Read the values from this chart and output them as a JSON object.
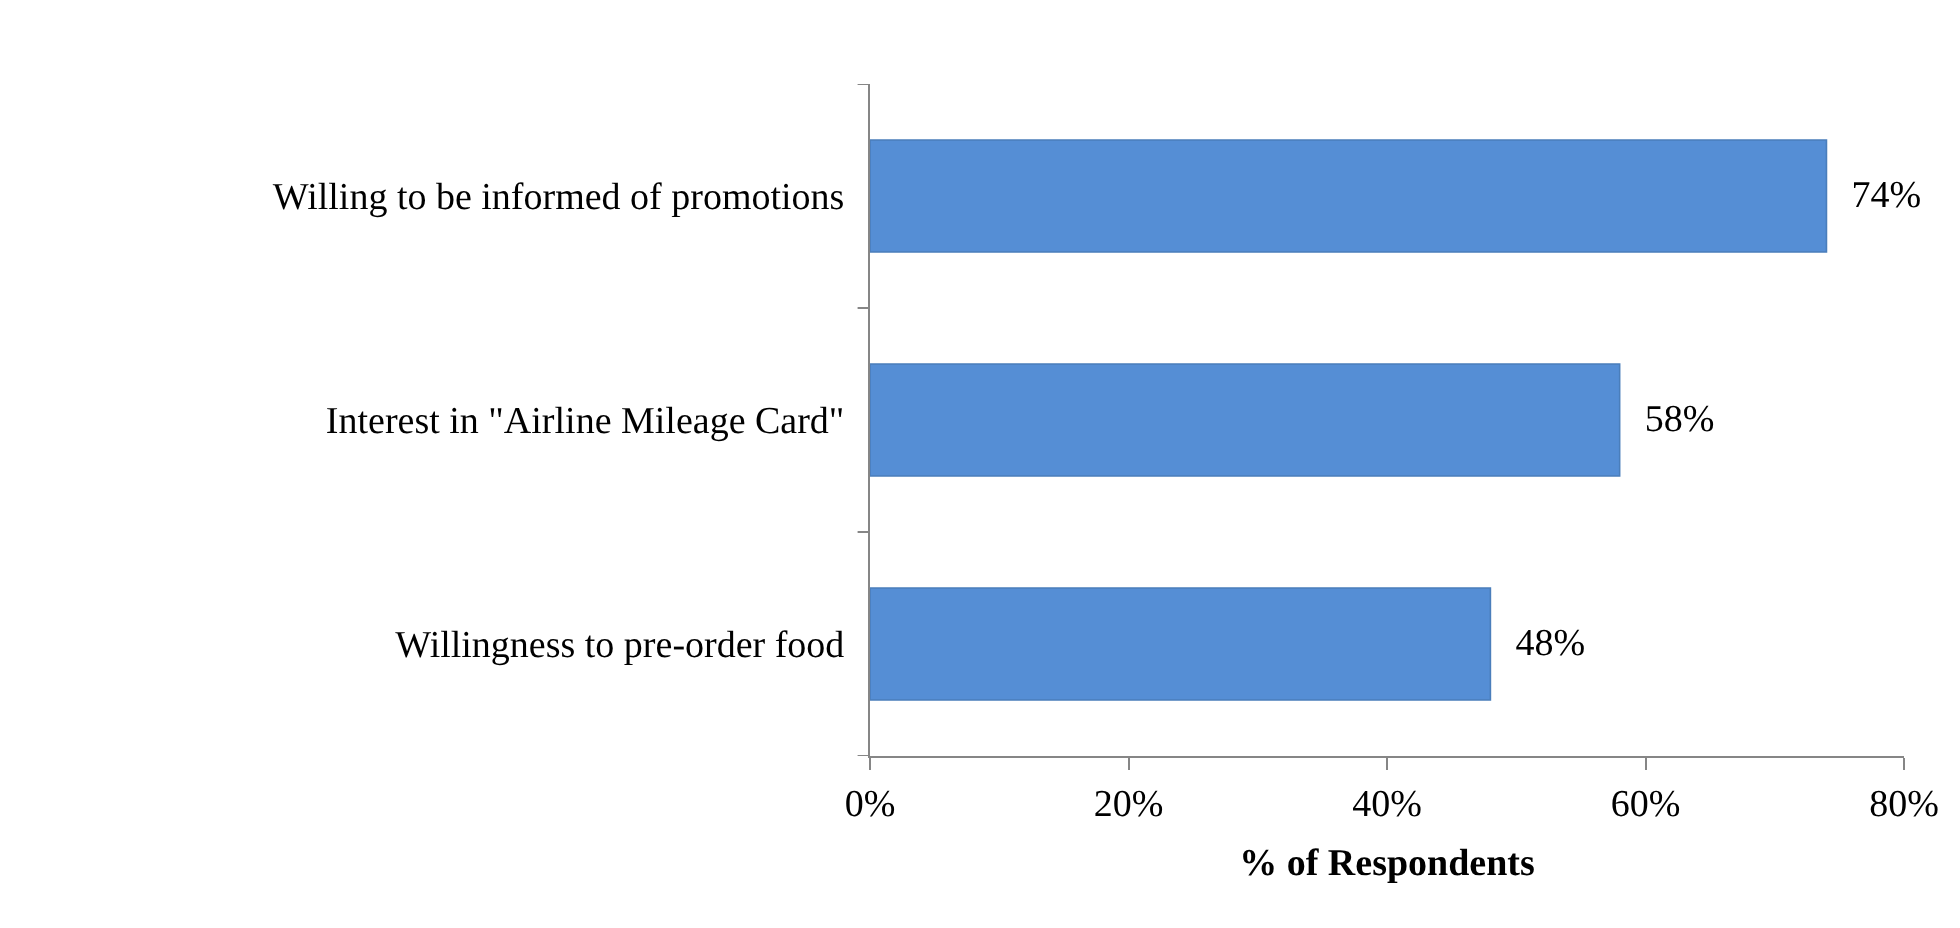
{
  "chart_data": {
    "type": "bar",
    "orientation": "horizontal",
    "xlabel": "% of Respondents",
    "categories": [
      "Willing to be informed of promotions",
      "Interest in \"Airline Mileage Card\"",
      "Willingness to pre-order food"
    ],
    "values": [
      74,
      58,
      48
    ],
    "color": "#558ed5",
    "value_labels": [
      "74%",
      "58%",
      "48%"
    ],
    "xlim": [
      0,
      80
    ],
    "xticks": [
      {
        "value": 0,
        "label": "0%"
      },
      {
        "value": 20,
        "label": "20%"
      },
      {
        "value": 40,
        "label": "40%"
      },
      {
        "value": 60,
        "label": "60%"
      },
      {
        "value": 80,
        "label": "80%"
      }
    ]
  }
}
